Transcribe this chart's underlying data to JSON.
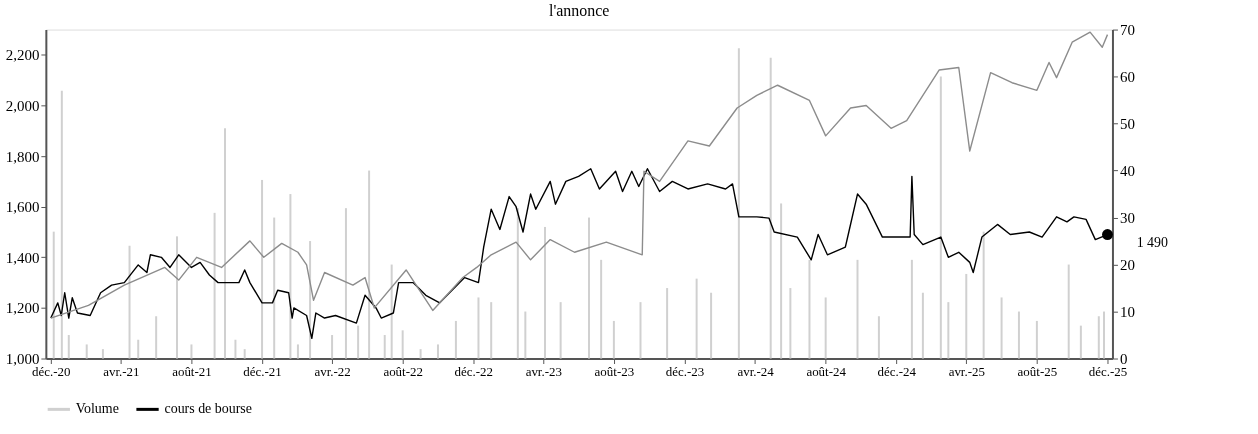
{
  "chart_data": {
    "type": "line",
    "title": "l'annonce",
    "xlim": [
      "2020-12-01",
      "2025-12-01"
    ],
    "xticks": [
      {
        "value": "2020-12",
        "label": "déc.-20"
      },
      {
        "value": "2021-04",
        "label": "avr.-21"
      },
      {
        "value": "2021-08",
        "label": "août-21"
      },
      {
        "value": "2021-12",
        "label": "déc.-21"
      },
      {
        "value": "2022-04",
        "label": "avr.-22"
      },
      {
        "value": "2022-08",
        "label": "août-22"
      },
      {
        "value": "2022-12",
        "label": "déc.-22"
      },
      {
        "value": "2023-04",
        "label": "avr.-23"
      },
      {
        "value": "2023-08",
        "label": "août-23"
      },
      {
        "value": "2023-12",
        "label": "déc.-23"
      },
      {
        "value": "2024-04",
        "label": "avr.-24"
      },
      {
        "value": "2024-08",
        "label": "août-24"
      },
      {
        "value": "2024-12",
        "label": "déc.-24"
      },
      {
        "value": "2025-04",
        "label": "avr.-25"
      },
      {
        "value": "2025-08",
        "label": "août-25"
      },
      {
        "value": "2025-12",
        "label": "déc.-25"
      }
    ],
    "ylim": [
      1000,
      2300
    ],
    "yticks": [
      {
        "value": 1000,
        "label": "1,000"
      },
      {
        "value": 1200,
        "label": "1,200"
      },
      {
        "value": 1400,
        "label": "1,400"
      },
      {
        "value": 1600,
        "label": "1,600"
      },
      {
        "value": 1800,
        "label": "1,800"
      },
      {
        "value": 2000,
        "label": "2,000"
      },
      {
        "value": 2200,
        "label": "2,200"
      }
    ],
    "y2lim": [
      0,
      70
    ],
    "y2ticks": [
      0,
      10,
      20,
      30,
      40,
      50,
      60,
      70
    ],
    "grid": false,
    "legend": "bottom",
    "marker": "none",
    "line_style": "solid",
    "annotations": [
      {
        "text": "1 490",
        "x": "2025-12-01",
        "y": 1490
      }
    ],
    "series": [
      {
        "name": "Volume",
        "type": "bar",
        "axis": "y2",
        "color": "#d0d0d0",
        "x": [
          "2020-12-06",
          "2020-12-20",
          "2021-01-01",
          "2021-02-01",
          "2021-03-01",
          "2021-04-16",
          "2021-05-01",
          "2021-06-01",
          "2021-07-07",
          "2021-08-01",
          "2021-09-10",
          "2021-09-28",
          "2021-10-16",
          "2021-11-01",
          "2021-12-01",
          "2021-12-22",
          "2022-01-19",
          "2022-02-01",
          "2022-02-22",
          "2022-04-01",
          "2022-04-25",
          "2022-05-16",
          "2022-06-04",
          "2022-07-01",
          "2022-07-13",
          "2022-08-01",
          "2022-09-01",
          "2022-10-01",
          "2022-11-01",
          "2022-12-10",
          "2023-01-01",
          "2023-02-16",
          "2023-03-01",
          "2023-04-04",
          "2023-05-01",
          "2023-06-19",
          "2023-07-10",
          "2023-08-01",
          "2023-09-16",
          "2023-11-01",
          "2023-12-22",
          "2024-01-16",
          "2024-03-04",
          "2024-04-28",
          "2024-05-16",
          "2024-06-01",
          "2024-07-04",
          "2024-08-01",
          "2024-09-25",
          "2024-11-01",
          "2024-12-28",
          "2025-01-16",
          "2025-02-16",
          "2025-03-01",
          "2025-04-01",
          "2025-05-01",
          "2025-06-01",
          "2025-07-01",
          "2025-08-01",
          "2025-09-25",
          "2025-10-16",
          "2025-11-16",
          "2025-11-25"
        ],
        "values": [
          27,
          57,
          5,
          3,
          2,
          24,
          4,
          9,
          26,
          3,
          31,
          49,
          4,
          2,
          38,
          30,
          35,
          3,
          25,
          5,
          32,
          7,
          40,
          5,
          20,
          6,
          2,
          3,
          8,
          13,
          12,
          32,
          10,
          28,
          12,
          30,
          21,
          8,
          12,
          15,
          17,
          14,
          66,
          64,
          33,
          15,
          21,
          13,
          21,
          9,
          21,
          14,
          60,
          12,
          18,
          27,
          13,
          10,
          8,
          20,
          7,
          9,
          10
        ]
      },
      {
        "name": "cours de bourse",
        "color": "#000000",
        "x": [
          "2020-12-01",
          "2020-12-13",
          "2020-12-19",
          "2020-12-25",
          "2021-01-01",
          "2021-01-07",
          "2021-01-16",
          "2021-02-07",
          "2021-02-25",
          "2021-03-16",
          "2021-04-07",
          "2021-05-01",
          "2021-05-16",
          "2021-05-22",
          "2021-06-10",
          "2021-06-25",
          "2021-07-10",
          "2021-08-01",
          "2021-08-16",
          "2021-09-01",
          "2021-09-16",
          "2021-10-22",
          "2021-11-01",
          "2021-11-10",
          "2021-12-01",
          "2021-12-19",
          "2021-12-28",
          "2022-01-16",
          "2022-01-22",
          "2022-01-25",
          "2022-02-16",
          "2022-02-25",
          "2022-03-04",
          "2022-03-19",
          "2022-04-07",
          "2022-05-13",
          "2022-05-28",
          "2022-06-16",
          "2022-06-25",
          "2022-07-16",
          "2022-07-25",
          "2022-08-19",
          "2022-09-10",
          "2022-10-04",
          "2022-11-16",
          "2022-12-10",
          "2022-12-19",
          "2023-01-01",
          "2023-01-16",
          "2023-02-01",
          "2023-02-13",
          "2023-02-25",
          "2023-03-10",
          "2023-03-19",
          "2023-04-13",
          "2023-04-22",
          "2023-05-10",
          "2023-06-01",
          "2023-06-22",
          "2023-07-07",
          "2023-08-04",
          "2023-08-16",
          "2023-09-01",
          "2023-09-13",
          "2023-09-28",
          "2023-10-19",
          "2023-11-10",
          "2023-12-07",
          "2024-01-10",
          "2024-02-10",
          "2024-02-22",
          "2024-03-04",
          "2024-04-04",
          "2024-04-25",
          "2024-05-04",
          "2024-06-13",
          "2024-07-07",
          "2024-07-19",
          "2024-08-04",
          "2024-09-04",
          "2024-09-10",
          "2024-09-25",
          "2024-10-10",
          "2024-11-07",
          "2024-12-25",
          "2024-12-28",
          "2025-01-01",
          "2025-01-16",
          "2025-02-16",
          "2025-03-01",
          "2025-03-19",
          "2025-04-07",
          "2025-04-13",
          "2025-04-28",
          "2025-05-25",
          "2025-06-16",
          "2025-07-19",
          "2025-08-10",
          "2025-09-04",
          "2025-09-22",
          "2025-10-04",
          "2025-10-25",
          "2025-11-10",
          "2025-12-01"
        ],
        "values": [
          1160,
          1220,
          1170,
          1260,
          1160,
          1240,
          1180,
          1170,
          1260,
          1290,
          1300,
          1370,
          1340,
          1410,
          1400,
          1360,
          1410,
          1360,
          1380,
          1330,
          1300,
          1300,
          1350,
          1300,
          1220,
          1220,
          1270,
          1260,
          1160,
          1200,
          1170,
          1080,
          1180,
          1160,
          1170,
          1140,
          1250,
          1200,
          1160,
          1180,
          1300,
          1300,
          1250,
          1220,
          1320,
          1300,
          1440,
          1590,
          1510,
          1640,
          1600,
          1500,
          1650,
          1590,
          1700,
          1610,
          1700,
          1720,
          1750,
          1670,
          1740,
          1660,
          1740,
          1680,
          1750,
          1660,
          1700,
          1670,
          1690,
          1670,
          1690,
          1560,
          1560,
          1555,
          1500,
          1480,
          1390,
          1490,
          1410,
          1440,
          1500,
          1650,
          1610,
          1480,
          1480,
          1720,
          1490,
          1450,
          1480,
          1400,
          1420,
          1380,
          1340,
          1480,
          1530,
          1490,
          1500,
          1480,
          1560,
          1540,
          1560,
          1550,
          1470,
          1490
        ]
      },
      {
        "color": "#8c8c8c",
        "x": [
          "2020-12-01",
          "2021-02-04",
          "2021-04-07",
          "2021-06-16",
          "2021-07-10",
          "2021-08-10",
          "2021-09-22",
          "2021-11-10",
          "2021-12-04",
          "2022-01-04",
          "2022-02-01",
          "2022-02-16",
          "2022-02-28",
          "2022-03-19",
          "2022-05-07",
          "2022-05-28",
          "2022-06-13",
          "2022-08-07",
          "2022-09-22",
          "2022-11-13",
          "2022-12-07",
          "2023-01-01",
          "2023-02-13",
          "2023-03-10",
          "2023-04-13",
          "2023-05-25",
          "2023-07-19",
          "2023-09-19",
          "2023-09-22",
          "2023-10-19",
          "2023-12-07",
          "2024-01-13",
          "2024-03-01",
          "2024-04-04",
          "2024-05-10",
          "2024-07-04",
          "2024-08-01",
          "2024-09-13",
          "2024-10-10",
          "2024-11-22",
          "2024-12-19",
          "2025-02-13",
          "2025-03-19",
          "2025-04-07",
          "2025-05-13",
          "2025-06-19",
          "2025-08-01",
          "2025-08-22",
          "2025-09-04",
          "2025-10-01",
          "2025-11-01",
          "2025-11-22",
          "2025-12-01"
        ],
        "values": [
          1160,
          1210,
          1290,
          1360,
          1310,
          1400,
          1360,
          1465,
          1400,
          1455,
          1420,
          1370,
          1230,
          1340,
          1290,
          1320,
          1200,
          1350,
          1190,
          1320,
          1360,
          1410,
          1460,
          1390,
          1470,
          1420,
          1460,
          1410,
          1740,
          1700,
          1860,
          1840,
          1990,
          2040,
          2080,
          2020,
          1880,
          1990,
          2000,
          1910,
          1940,
          2140,
          2150,
          1820,
          2130,
          2090,
          2060,
          2170,
          2110,
          2250,
          2290,
          2230,
          2280
        ]
      }
    ]
  }
}
